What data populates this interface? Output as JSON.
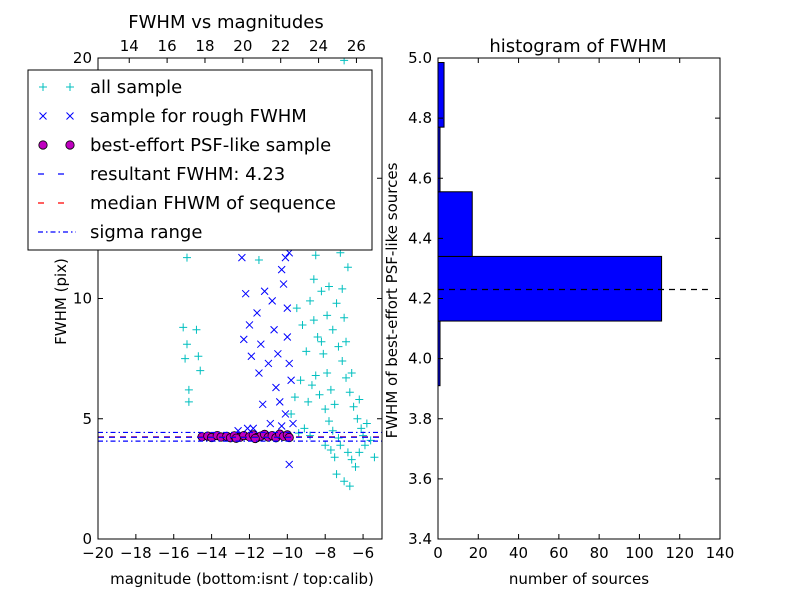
{
  "chart_data": [
    {
      "type": "scatter",
      "title": "FWHM vs magnitudes",
      "xlabel": "magnitude (bottom:isnt / top:calib)",
      "ylabel": "FWHM (pix)",
      "xlim": [
        -20,
        -5
      ],
      "ylim": [
        0,
        20
      ],
      "top_xlim": [
        12.35,
        27.35
      ],
      "x_ticks": [
        "−20",
        "−18",
        "−16",
        "−14",
        "−12",
        "−10",
        "−8",
        "−6"
      ],
      "x_tick_values": [
        -20,
        -18,
        -16,
        -14,
        -12,
        -10,
        -8,
        -6
      ],
      "top_x_ticks": [
        "14",
        "16",
        "18",
        "20",
        "22",
        "24",
        "26"
      ],
      "top_x_tick_values": [
        14,
        16,
        18,
        20,
        22,
        24,
        26
      ],
      "y_ticks": [
        "0",
        "5",
        "10",
        "15",
        "20"
      ],
      "y_tick_values": [
        0,
        5,
        10,
        15,
        20
      ],
      "legend_position": "top-left",
      "legend": [
        {
          "label": "all sample",
          "marker": "plus",
          "color": "#00bfbf"
        },
        {
          "label": "sample for rough FWHM",
          "marker": "x",
          "color": "#0000ff"
        },
        {
          "label": "best-effort PSF-like sample",
          "marker": "circle",
          "color": "#bf00bf"
        },
        {
          "label": "resultant FWHM: 4.23",
          "marker": "dashed",
          "color": "#0000ff"
        },
        {
          "label": "median FHWM of sequence",
          "marker": "dashed",
          "color": "#ff0000"
        },
        {
          "label": "sigma range",
          "marker": "dashdot",
          "color": "#0000ff"
        }
      ],
      "resultant_fwhm": 4.23,
      "median_fwhm": 4.25,
      "sigma_range": [
        4.07,
        4.43
      ],
      "series": [
        {
          "name": "all sample",
          "points": [
            [
              -15.5,
              8.8
            ],
            [
              -15.3,
              8.1
            ],
            [
              -15.2,
              6.2
            ],
            [
              -15.2,
              5.7
            ],
            [
              -14.8,
              8.7
            ],
            [
              -14.7,
              7.6
            ],
            [
              -14.6,
              7.0
            ],
            [
              -15.4,
              7.5
            ],
            [
              -15.3,
              11.7
            ],
            [
              -13.2,
              13.5
            ],
            [
              -11.0,
              12.2
            ],
            [
              -11.5,
              11.6
            ],
            [
              -10.5,
              13.8
            ],
            [
              -8.5,
              11.8
            ],
            [
              -8.3,
              12.6
            ],
            [
              -8.0,
              13.9
            ],
            [
              -7.6,
              12.8
            ],
            [
              -7.2,
              11.9
            ],
            [
              -6.8,
              11.3
            ],
            [
              -7.0,
              19.9
            ],
            [
              -8.6,
              10.8
            ],
            [
              -8.2,
              10.3
            ],
            [
              -7.8,
              10.5
            ],
            [
              -7.4,
              9.8
            ],
            [
              -7.0,
              9.2
            ],
            [
              -9.5,
              9.6
            ],
            [
              -9.2,
              8.9
            ],
            [
              -9.0,
              7.8
            ],
            [
              -9.3,
              6.6
            ],
            [
              -9.6,
              5.9
            ],
            [
              -9.8,
              5.2
            ],
            [
              -8.6,
              9.1
            ],
            [
              -8.4,
              8.4
            ],
            [
              -8.1,
              7.7
            ],
            [
              -7.9,
              6.9
            ],
            [
              -7.7,
              6.2
            ],
            [
              -7.5,
              5.6
            ],
            [
              -8.5,
              6.8
            ],
            [
              -8.3,
              6.0
            ],
            [
              -8.0,
              5.4
            ],
            [
              -7.8,
              4.9
            ],
            [
              -7.6,
              4.5
            ],
            [
              -7.3,
              4.2
            ],
            [
              -7.1,
              7.4
            ],
            [
              -6.9,
              6.7
            ],
            [
              -6.7,
              6.1
            ],
            [
              -6.5,
              5.5
            ],
            [
              -6.3,
              5.0
            ],
            [
              -6.1,
              4.6
            ],
            [
              -7.2,
              3.9
            ],
            [
              -6.8,
              3.6
            ],
            [
              -6.6,
              3.3
            ],
            [
              -6.4,
              3.0
            ],
            [
              -6.2,
              3.6
            ],
            [
              -5.9,
              3.9
            ],
            [
              -5.6,
              4.1
            ],
            [
              -5.4,
              3.4
            ],
            [
              -7.4,
              2.7
            ],
            [
              -7.0,
              2.4
            ],
            [
              -6.7,
              2.2
            ],
            [
              -8.8,
              4.3
            ],
            [
              -8.9,
              5.7
            ],
            [
              -8.7,
              6.4
            ],
            [
              -8.2,
              8.2
            ],
            [
              -7.9,
              9.3
            ],
            [
              -7.6,
              8.7
            ],
            [
              -7.3,
              8.0
            ],
            [
              -9.1,
              4.6
            ],
            [
              -9.4,
              4.4
            ],
            [
              -8.0,
              3.9
            ],
            [
              -7.7,
              3.7
            ],
            [
              -7.5,
              3.4
            ],
            [
              -6.0,
              4.3
            ],
            [
              -5.8,
              4.8
            ],
            [
              -6.2,
              5.8
            ],
            [
              -6.6,
              6.9
            ],
            [
              -6.9,
              8.2
            ],
            [
              -7.1,
              10.4
            ],
            [
              -8.8,
              9.9
            ]
          ]
        },
        {
          "name": "sample for rough FWHM",
          "points": [
            [
              -12.4,
              11.7
            ],
            [
              -12.2,
              10.2
            ],
            [
              -12.0,
              8.9
            ],
            [
              -12.3,
              8.3
            ],
            [
              -11.9,
              7.6
            ],
            [
              -11.6,
              9.4
            ],
            [
              -11.5,
              6.9
            ],
            [
              -11.3,
              5.6
            ],
            [
              -11.0,
              7.3
            ],
            [
              -10.8,
              9.9
            ],
            [
              -10.7,
              8.7
            ],
            [
              -10.5,
              7.7
            ],
            [
              -10.3,
              11.2
            ],
            [
              -10.2,
              10.6
            ],
            [
              -10.0,
              9.6
            ],
            [
              -10.0,
              8.4
            ],
            [
              -9.9,
              7.3
            ],
            [
              -9.8,
              6.6
            ],
            [
              -10.4,
              12.6
            ],
            [
              -10.8,
              12.9
            ],
            [
              -10.1,
              11.7
            ],
            [
              -9.9,
              11.9
            ],
            [
              -11.2,
              10.3
            ],
            [
              -11.4,
              8.1
            ],
            [
              -10.6,
              6.3
            ],
            [
              -10.4,
              5.7
            ],
            [
              -10.1,
              5.2
            ],
            [
              -9.9,
              3.1
            ],
            [
              -12.1,
              4.6
            ],
            [
              -11.8,
              4.6
            ],
            [
              -12.6,
              4.5
            ],
            [
              -10.9,
              4.8
            ],
            [
              -10.3,
              4.7
            ],
            [
              -9.7,
              4.8
            ]
          ]
        },
        {
          "name": "best-effort PSF-like sample",
          "points": [
            [
              -14.5,
              4.25
            ],
            [
              -14.2,
              4.28
            ],
            [
              -14.0,
              4.22
            ],
            [
              -13.7,
              4.3
            ],
            [
              -13.5,
              4.24
            ],
            [
              -13.2,
              4.27
            ],
            [
              -13.0,
              4.21
            ],
            [
              -12.8,
              4.29
            ],
            [
              -12.5,
              4.23
            ],
            [
              -12.3,
              4.3
            ],
            [
              -12.0,
              4.25
            ],
            [
              -11.8,
              4.33
            ],
            [
              -11.6,
              4.22
            ],
            [
              -11.4,
              4.28
            ],
            [
              -11.2,
              4.35
            ],
            [
              -11.0,
              4.24
            ],
            [
              -10.8,
              4.3
            ],
            [
              -10.6,
              4.21
            ],
            [
              -10.4,
              4.36
            ],
            [
              -10.2,
              4.27
            ],
            [
              -10.0,
              4.33
            ],
            [
              -9.9,
              4.22
            ],
            [
              -11.7,
              4.18
            ],
            [
              -12.7,
              4.19
            ]
          ]
        }
      ]
    },
    {
      "type": "bar",
      "orientation": "horizontal",
      "title": "histogram of FWHM",
      "xlabel": "number of sources",
      "ylabel": "FWHM of best-effort PSF-like sources",
      "xlim": [
        0,
        140
      ],
      "ylim": [
        3.4,
        5.0
      ],
      "x_ticks": [
        "0",
        "20",
        "40",
        "60",
        "80",
        "100",
        "120",
        "140"
      ],
      "x_tick_values": [
        0,
        20,
        40,
        60,
        80,
        100,
        120,
        140
      ],
      "y_ticks": [
        "3.4",
        "3.6",
        "3.8",
        "4.0",
        "4.2",
        "4.4",
        "4.6",
        "4.8",
        "5.0"
      ],
      "y_tick_values": [
        3.4,
        3.6,
        3.8,
        4.0,
        4.2,
        4.4,
        4.6,
        4.8,
        5.0
      ],
      "bar_color": "#0000ff",
      "bins": [
        {
          "from": 3.91,
          "to": 4.125,
          "count": 1
        },
        {
          "from": 4.125,
          "to": 4.34,
          "count": 111
        },
        {
          "from": 4.34,
          "to": 4.555,
          "count": 17
        },
        {
          "from": 4.555,
          "to": 4.77,
          "count": 1
        },
        {
          "from": 4.77,
          "to": 4.985,
          "count": 3
        }
      ],
      "reference_line": {
        "value": 4.23,
        "x_extent": [
          0,
          134
        ],
        "style": "dashed",
        "color": "#000000"
      }
    }
  ]
}
